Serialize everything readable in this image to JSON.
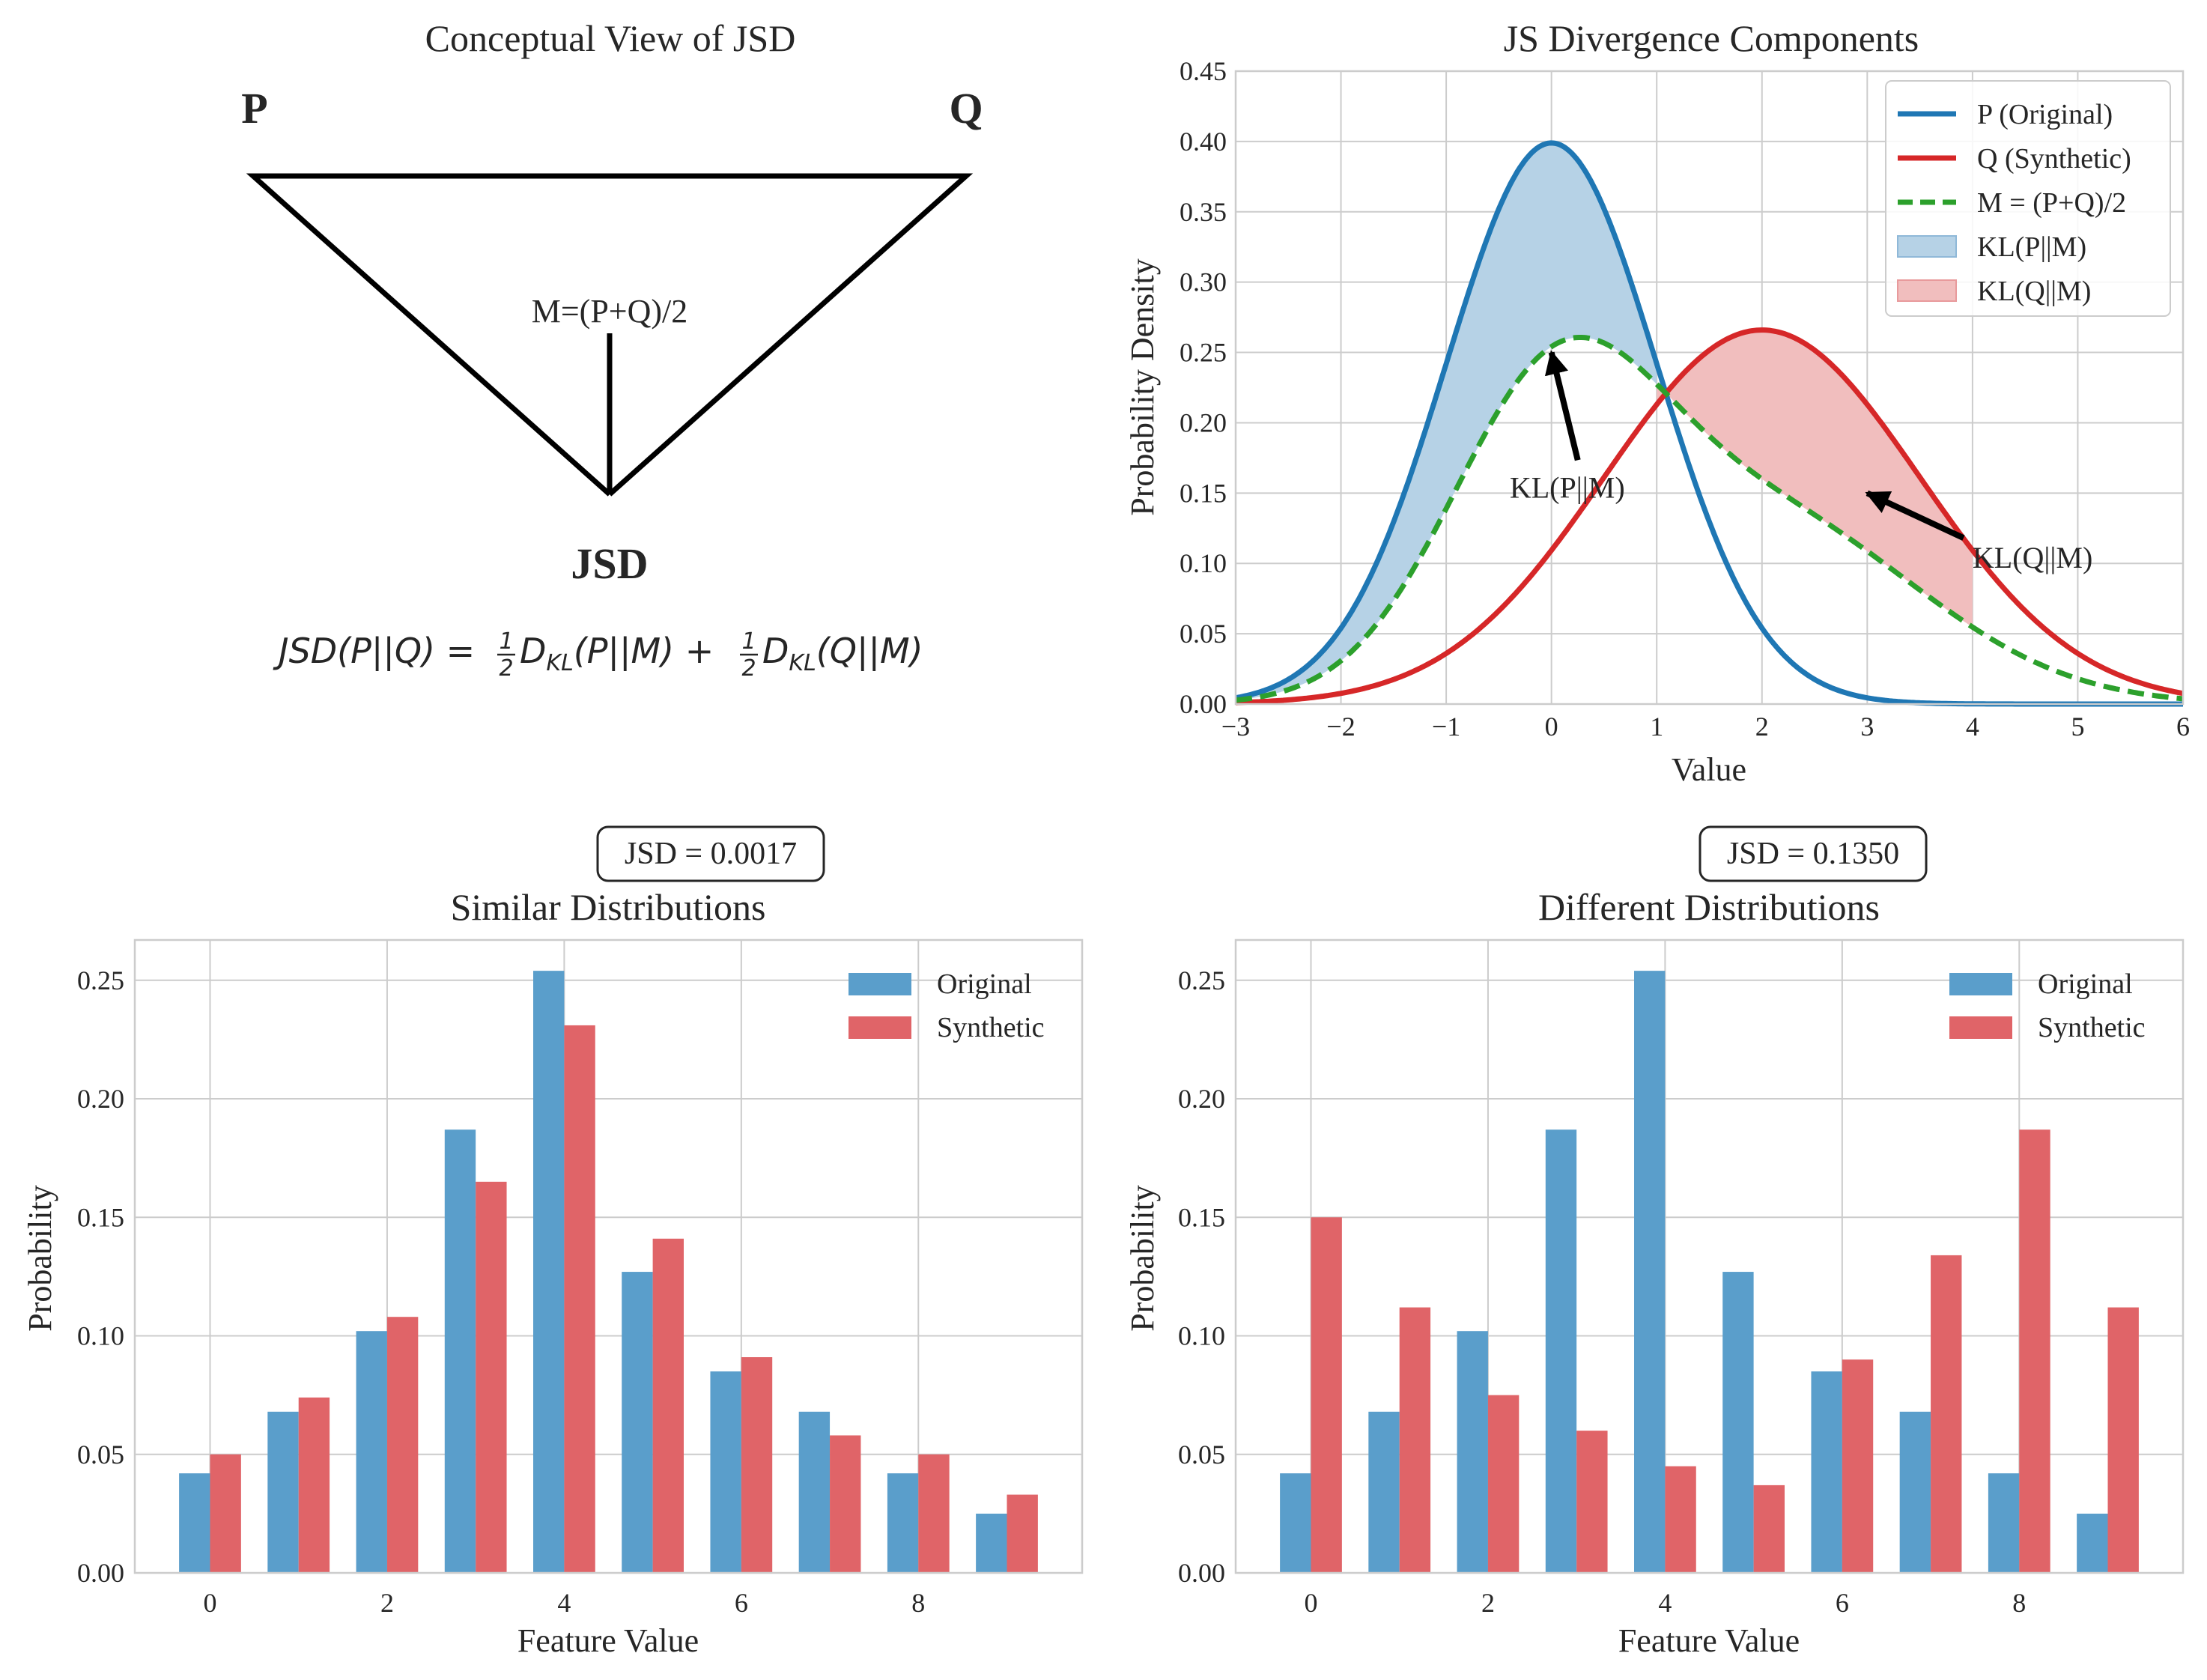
{
  "concept": {
    "title": "Conceptual View of JSD",
    "label_p": "P",
    "label_q": "Q",
    "label_m": "M=(P+Q)/2",
    "label_jsd": "JSD",
    "formula_lhs": "JSD(P||Q) = ",
    "formula_half": "1",
    "formula_two": "2",
    "formula_d": "D",
    "formula_kl": "KL",
    "formula_arg1": "(P||M) + ",
    "formula_arg2": "(Q||M)"
  },
  "colors": {
    "p": "#1f77b4",
    "q": "#d62728",
    "m": "#2ca02c",
    "p_fill": "#b6d2e6",
    "q_fill": "#f1bebe",
    "bar_original": "#5a9ecb",
    "bar_synthetic": "#e06468",
    "grid": "#cccccc",
    "axis": "#cccccc",
    "text": "#262626"
  },
  "chart_data": [
    {
      "type": "line",
      "title": "JS Divergence Components",
      "xlabel": "Value",
      "ylabel": "Probability Density",
      "xlim": [
        -3,
        6
      ],
      "ylim": [
        0,
        0.45
      ],
      "xticks": [
        -3,
        -2,
        -1,
        0,
        1,
        2,
        3,
        4,
        5,
        6
      ],
      "yticks": [
        0.0,
        0.05,
        0.1,
        0.15,
        0.2,
        0.25,
        0.3,
        0.35,
        0.4,
        0.45
      ],
      "xtick_labels": [
        "−3",
        "−2",
        "−1",
        "0",
        "1",
        "2",
        "3",
        "4",
        "5",
        "6"
      ],
      "ytick_labels": [
        "0.00",
        "0.05",
        "0.10",
        "0.15",
        "0.20",
        "0.25",
        "0.30",
        "0.35",
        "0.40",
        "0.45"
      ],
      "grid": true,
      "legend_position": "top-right",
      "series": [
        {
          "name": "P (Original)",
          "distribution": "normal",
          "mean": 0,
          "std": 1,
          "style": "solid"
        },
        {
          "name": "Q (Synthetic)",
          "distribution": "normal",
          "mean": 2,
          "std": 1.5,
          "style": "solid"
        },
        {
          "name": "M = (P+Q)/2",
          "distribution": "mixture",
          "style": "dashed"
        }
      ],
      "fills": [
        {
          "name": "KL(P||M)",
          "x_range": [
            -3,
            1
          ],
          "between": [
            "P (Original)",
            "M = (P+Q)/2"
          ]
        },
        {
          "name": "KL(Q||M)",
          "x_range": [
            1,
            4
          ],
          "between": [
            "Q (Synthetic)",
            "M = (P+Q)/2"
          ]
        }
      ],
      "annotations": [
        {
          "text": "KL(P||M)",
          "text_at": [
            0.15,
            0.15
          ],
          "arrow_to": [
            0,
            0.25
          ]
        },
        {
          "text": "KL(Q||M)",
          "text_at": [
            4.0,
            0.1
          ],
          "arrow_to": [
            3.0,
            0.15
          ]
        }
      ]
    },
    {
      "type": "bar",
      "title": "Similar Distributions",
      "badge": "JSD = 0.0017",
      "xlabel": "Feature Value",
      "ylabel": "Probability",
      "categories": [
        0,
        1,
        2,
        3,
        4,
        5,
        6,
        7,
        8,
        9
      ],
      "xticks": [
        0,
        2,
        4,
        6,
        8
      ],
      "xtick_labels": [
        "0",
        "2",
        "4",
        "6",
        "8"
      ],
      "yticks": [
        0.0,
        0.05,
        0.1,
        0.15,
        0.2,
        0.25
      ],
      "ytick_labels": [
        "0.00",
        "0.05",
        "0.10",
        "0.15",
        "0.20",
        "0.25"
      ],
      "ylim": [
        0,
        0.267
      ],
      "xlim": [
        -0.85,
        9.85
      ],
      "grid": true,
      "legend_position": "top-right",
      "series": [
        {
          "name": "Original",
          "values": [
            0.042,
            0.068,
            0.102,
            0.187,
            0.254,
            0.127,
            0.085,
            0.068,
            0.042,
            0.025
          ]
        },
        {
          "name": "Synthetic",
          "values": [
            0.05,
            0.074,
            0.108,
            0.165,
            0.231,
            0.141,
            0.091,
            0.058,
            0.05,
            0.033
          ]
        }
      ]
    },
    {
      "type": "bar",
      "title": "Different Distributions",
      "badge": "JSD = 0.1350",
      "xlabel": "Feature Value",
      "ylabel": "Probability",
      "categories": [
        0,
        1,
        2,
        3,
        4,
        5,
        6,
        7,
        8,
        9
      ],
      "xticks": [
        0,
        2,
        4,
        6,
        8
      ],
      "xtick_labels": [
        "0",
        "2",
        "4",
        "6",
        "8"
      ],
      "yticks": [
        0.0,
        0.05,
        0.1,
        0.15,
        0.2,
        0.25
      ],
      "ytick_labels": [
        "0.00",
        "0.05",
        "0.10",
        "0.15",
        "0.20",
        "0.25"
      ],
      "ylim": [
        0,
        0.267
      ],
      "xlim": [
        -0.85,
        9.85
      ],
      "grid": true,
      "legend_position": "top-right",
      "series": [
        {
          "name": "Original",
          "values": [
            0.042,
            0.068,
            0.102,
            0.187,
            0.254,
            0.127,
            0.085,
            0.068,
            0.042,
            0.025
          ]
        },
        {
          "name": "Synthetic",
          "values": [
            0.15,
            0.112,
            0.075,
            0.06,
            0.045,
            0.037,
            0.09,
            0.134,
            0.187,
            0.112
          ]
        }
      ]
    }
  ]
}
